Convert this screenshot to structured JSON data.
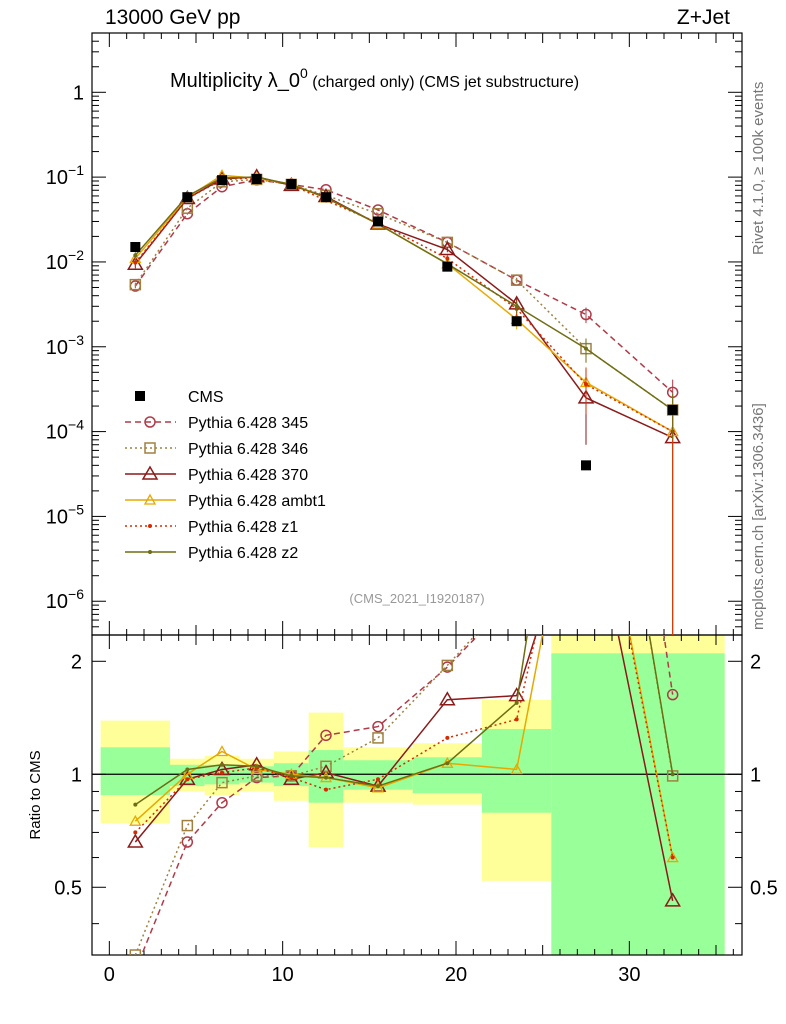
{
  "header": {
    "left": "13000 GeV pp",
    "right": "Z+Jet"
  },
  "side_labels": {
    "rivet": "Rivet 4.1.0, ≥ 100k events",
    "mcplots": "mcplots.cern.ch [arXiv:1306.3436]"
  },
  "colors": {
    "cms": "#000000",
    "p345": "#b03a48",
    "p346": "#a08040",
    "p370": "#8b1a1a",
    "ambt1": "#e8a800",
    "z1": "#d62b00",
    "z2": "#6e6e14",
    "band_inner": "#99ff99",
    "band_outer": "#ffff99",
    "watermark": "#999999"
  },
  "chart_data": {
    "type": "line",
    "title": "Multiplicity λ_0",
    "title_sup": "0",
    "subtitle": "(charged only) (CMS jet substructure)",
    "watermark": "(CMS_2021_I1920187)",
    "ylabel_ratio": "Ratio to CMS",
    "xlim": [
      -1,
      36.5
    ],
    "ylim_main": [
      4e-07,
      5
    ],
    "ylim_ratio": [
      0.33,
      2.35
    ],
    "x_ticks": [
      0,
      10,
      20,
      30
    ],
    "y_ticks_main": [
      {
        "v": 1,
        "base": "1",
        "exp": ""
      },
      {
        "v": 0.1,
        "base": "10",
        "exp": "−1"
      },
      {
        "v": 0.01,
        "base": "10",
        "exp": "−2"
      },
      {
        "v": 0.001,
        "base": "10",
        "exp": "−3"
      },
      {
        "v": 0.0001,
        "base": "10",
        "exp": "−4"
      },
      {
        "v": 1e-05,
        "base": "10",
        "exp": "−5"
      },
      {
        "v": 1e-06,
        "base": "10",
        "exp": "−6"
      }
    ],
    "y_ticks_ratio": [
      0.5,
      1,
      2
    ],
    "data": {
      "name": "CMS",
      "x": [
        1.5,
        4.5,
        6.5,
        8.5,
        10.5,
        12.5,
        15.5,
        19.5,
        23.5,
        27.5,
        32.5
      ],
      "y": [
        0.015,
        0.058,
        0.092,
        0.095,
        0.083,
        0.058,
        0.03,
        0.0088,
        0.002,
        4e-05,
        0.00018
      ]
    },
    "bands": [
      {
        "x0": -0.5,
        "x1": 3.5,
        "inner": [
          0.88,
          1.18
        ],
        "outer": [
          0.74,
          1.39
        ]
      },
      {
        "x0": 3.5,
        "x1": 5.5,
        "inner": [
          0.93,
          1.06
        ],
        "outer": [
          0.9,
          1.1
        ]
      },
      {
        "x0": 5.5,
        "x1": 7.5,
        "inner": [
          0.94,
          1.06
        ],
        "outer": [
          0.88,
          1.12
        ]
      },
      {
        "x0": 7.5,
        "x1": 9.5,
        "inner": [
          0.95,
          1.05
        ],
        "outer": [
          0.9,
          1.1
        ]
      },
      {
        "x0": 9.5,
        "x1": 11.5,
        "inner": [
          0.93,
          1.07
        ],
        "outer": [
          0.85,
          1.15
        ]
      },
      {
        "x0": 11.5,
        "x1": 13.5,
        "inner": [
          0.84,
          1.16
        ],
        "outer": [
          0.64,
          1.46
        ]
      },
      {
        "x0": 13.5,
        "x1": 17.5,
        "inner": [
          0.91,
          1.09
        ],
        "outer": [
          0.84,
          1.18
        ]
      },
      {
        "x0": 17.5,
        "x1": 21.5,
        "inner": [
          0.89,
          1.11
        ],
        "outer": [
          0.83,
          1.21
        ]
      },
      {
        "x0": 21.5,
        "x1": 25.5,
        "inner": [
          0.79,
          1.32
        ],
        "outer": [
          0.52,
          1.58
        ]
      },
      {
        "x0": 25.5,
        "x1": 35.5,
        "inner": [
          0.0,
          2.1
        ],
        "outer": [
          0.0,
          3.0
        ]
      }
    ],
    "series": [
      {
        "name": "Pythia 6.428 345",
        "color_key": "p345",
        "marker": "circle",
        "dash": "6,4",
        "x": [
          1.5,
          4.5,
          6.5,
          8.5,
          10.5,
          12.5,
          15.5,
          19.5,
          23.5,
          27.5,
          32.5
        ],
        "y": [
          0.0052,
          0.037,
          0.077,
          0.093,
          0.082,
          0.071,
          0.041,
          0.017,
          0.0061,
          0.0024,
          0.00029
        ],
        "ratio": [
          0.3,
          0.66,
          0.84,
          0.98,
          0.99,
          1.27,
          1.34,
          1.93,
          3.0,
          60.0,
          1.63
        ],
        "err": [
          0.0003,
          0.001,
          0.002,
          0.002,
          0.002,
          0.002,
          0.001,
          0.001,
          0.0004,
          0.0005,
          0.00012
        ]
      },
      {
        "name": "Pythia 6.428 346",
        "color_key": "p346",
        "marker": "square",
        "dash": "2,3",
        "x": [
          1.5,
          4.5,
          6.5,
          8.5,
          10.5,
          12.5,
          15.5,
          19.5,
          23.5,
          27.5,
          32.5
        ],
        "y": [
          0.0054,
          0.043,
          0.088,
          0.094,
          0.082,
          0.061,
          0.037,
          0.017,
          0.0061,
          0.00095,
          0.00018
        ],
        "ratio": [
          0.33,
          0.73,
          0.95,
          0.99,
          0.99,
          1.05,
          1.25,
          1.95,
          3.1,
          24.0,
          0.99
        ],
        "err": [
          0.0003,
          0.001,
          0.002,
          0.002,
          0.002,
          0.002,
          0.001,
          0.001,
          0.0004,
          0.0003,
          0.0001
        ]
      },
      {
        "name": "Pythia 6.428 370",
        "color_key": "p370",
        "marker": "triangle",
        "dash": "",
        "x": [
          1.5,
          4.5,
          6.5,
          8.5,
          10.5,
          12.5,
          15.5,
          19.5,
          23.5,
          27.5,
          32.5
        ],
        "y": [
          0.0094,
          0.056,
          0.095,
          0.101,
          0.08,
          0.059,
          0.028,
          0.014,
          0.0032,
          0.00025,
          8.5e-05
        ],
        "ratio": [
          0.66,
          0.97,
          1.03,
          1.06,
          0.97,
          1.01,
          0.93,
          1.58,
          1.62,
          6.2,
          0.46
        ],
        "err": [
          0.001,
          0.002,
          0.002,
          0.002,
          0.002,
          0.002,
          0.001,
          0.001,
          0.0005,
          0.00018,
          8.5e-05
        ]
      },
      {
        "name": "Pythia 6.428 ambt1",
        "color_key": "ambt1",
        "marker": "triangle-small",
        "dash": "",
        "x": [
          1.5,
          4.5,
          6.5,
          8.5,
          10.5,
          12.5,
          15.5,
          19.5,
          23.5,
          27.5,
          32.5
        ],
        "y": [
          0.011,
          0.058,
          0.105,
          0.097,
          0.083,
          0.057,
          0.028,
          0.0095,
          0.0021,
          0.00038,
          0.0001
        ],
        "ratio": [
          0.75,
          1.0,
          1.15,
          1.03,
          1.0,
          0.98,
          0.92,
          1.07,
          1.03,
          9.5,
          0.6
        ],
        "err": [
          0.001,
          0.002,
          0.002,
          0.002,
          0.002,
          0.002,
          0.001,
          0.001,
          0.0005,
          0.0002,
          0.0001
        ]
      },
      {
        "name": "Pythia 6.428 z1",
        "color_key": "z1",
        "marker": "dot",
        "dash": "2,3",
        "x": [
          1.5,
          4.5,
          6.5,
          8.5,
          10.5,
          12.5,
          15.5,
          19.5,
          23.5,
          27.5,
          32.5
        ],
        "y": [
          0.0098,
          0.056,
          0.093,
          0.099,
          0.081,
          0.053,
          0.029,
          0.011,
          0.0028,
          0.00036,
          0.0001
        ],
        "ratio": [
          0.7,
          0.97,
          1.01,
          1.04,
          0.98,
          0.91,
          0.97,
          1.25,
          1.4,
          9.0,
          0.6
        ],
        "err": [
          0.001,
          0.002,
          0.002,
          0.002,
          0.002,
          0.002,
          0.001,
          0.001,
          0.0005,
          0.0002,
          0.0001
        ]
      },
      {
        "name": "Pythia 6.428 z2",
        "color_key": "z2",
        "marker": "dot",
        "dash": "",
        "x": [
          1.5,
          4.5,
          6.5,
          8.5,
          10.5,
          12.5,
          15.5,
          19.5,
          23.5,
          27.5,
          32.5
        ],
        "y": [
          0.012,
          0.06,
          0.098,
          0.1,
          0.082,
          0.057,
          0.028,
          0.0095,
          0.003,
          0.00095,
          0.00018
        ],
        "ratio": [
          0.83,
          1.03,
          1.06,
          1.05,
          0.99,
          0.98,
          0.93,
          1.07,
          1.55,
          24.0,
          1.0
        ],
        "err": [
          0.001,
          0.002,
          0.002,
          0.002,
          0.002,
          0.002,
          0.001,
          0.001,
          0.0005,
          0.0003,
          0.0001
        ]
      }
    ]
  }
}
